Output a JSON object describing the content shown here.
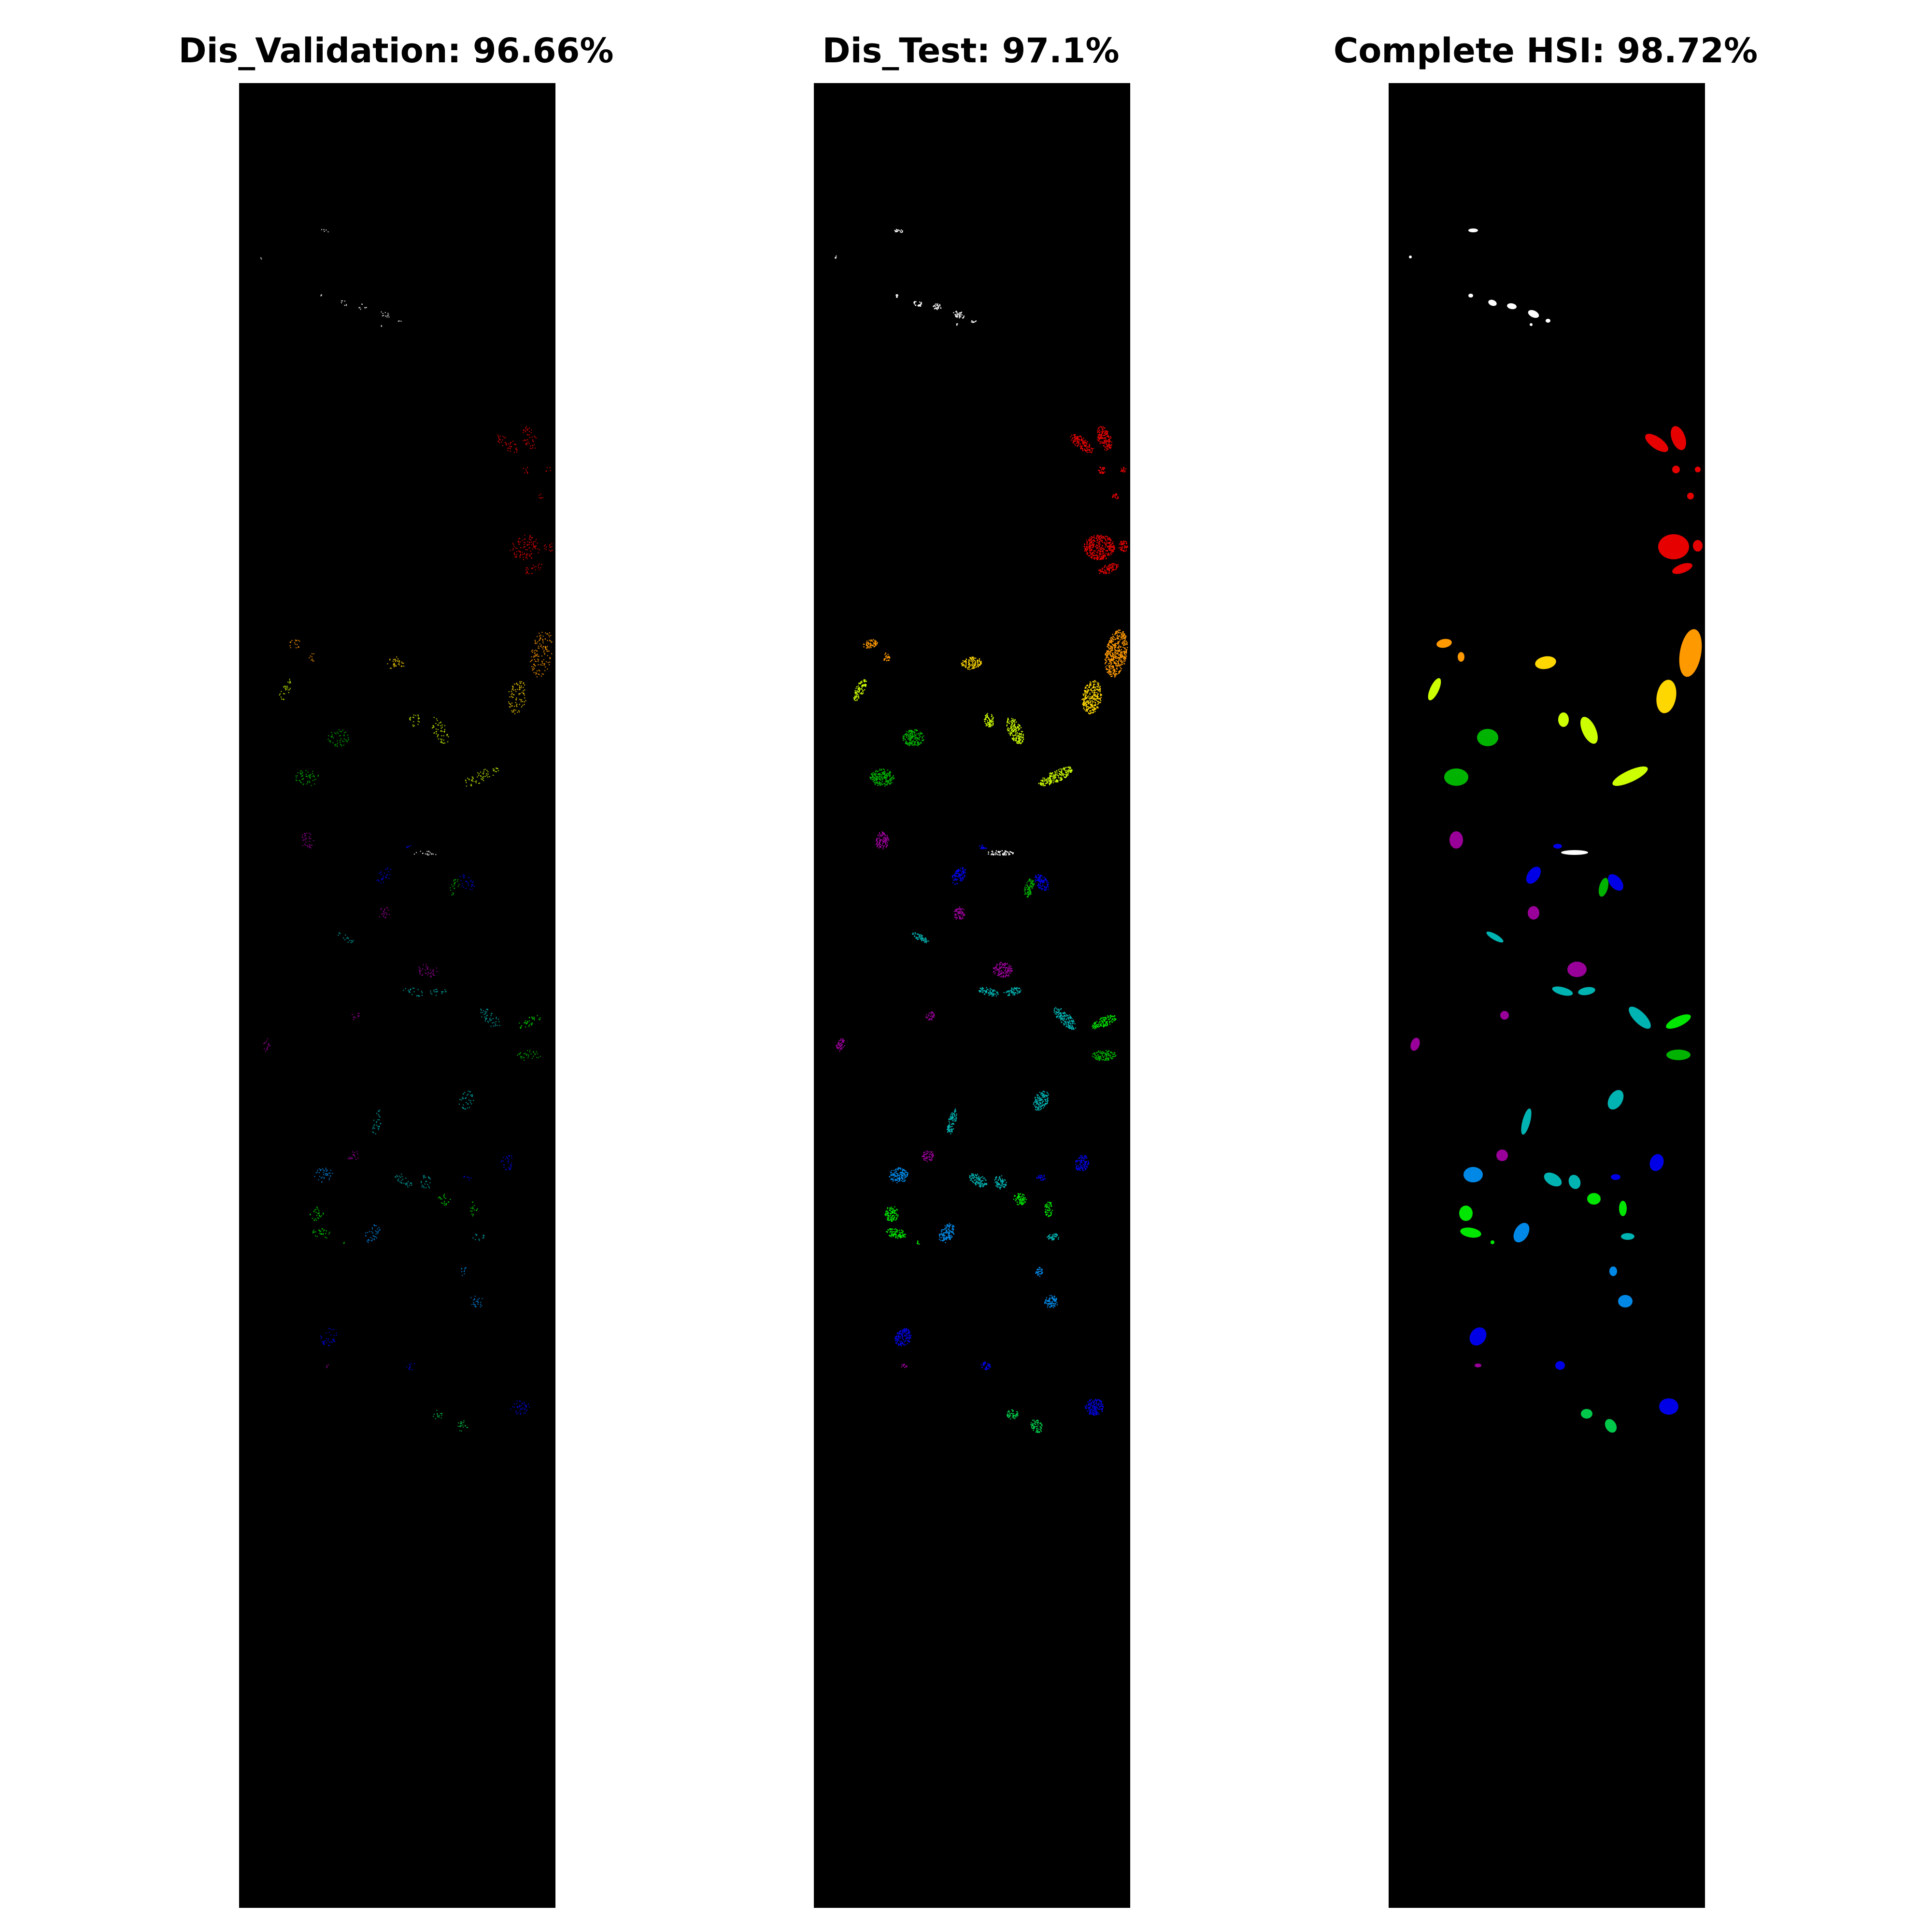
{
  "panels": [
    {
      "title": "Dis_Validation: 96.66%",
      "name": "dis-validation",
      "style": "sparse"
    },
    {
      "title": "Dis_Test: 97.1%",
      "name": "dis-test",
      "style": "dense"
    },
    {
      "title": "Complete HSI: 98.72%",
      "name": "complete-hsi",
      "style": "solid"
    }
  ],
  "class_colors": {
    "white": "#ffffff",
    "red": "#e60000",
    "orange": "#ff9900",
    "yellow": "#ffd700",
    "yellow_green": "#ccff00",
    "green": "#00b300",
    "bright_green": "#00e600",
    "mid_green": "#00c84a",
    "purple": "#990099",
    "blue": "#0000e6",
    "light_blue": "#0088e6",
    "teal": "#00b3b3",
    "background": "#000000"
  }
}
